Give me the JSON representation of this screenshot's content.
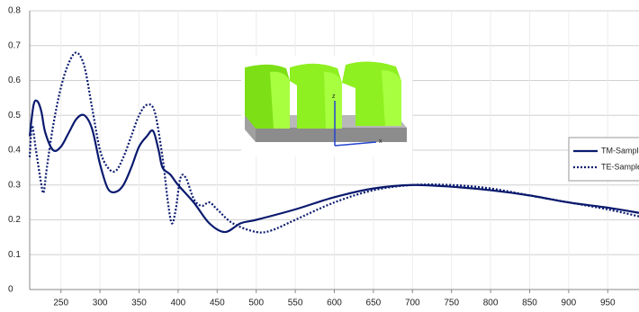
{
  "chart_data": {
    "type": "line",
    "xlim": [
      210,
      990
    ],
    "ylim": [
      0,
      0.8
    ],
    "xticks": [
      250,
      300,
      350,
      400,
      450,
      500,
      550,
      600,
      650,
      700,
      750,
      800,
      850,
      900,
      950
    ],
    "yticks": [
      0,
      0.1,
      0.2,
      0.3,
      0.4,
      0.5,
      0.6,
      0.7,
      0.8
    ],
    "grid": true,
    "legend": "right",
    "inset_labels": [
      "z",
      "x"
    ],
    "series": [
      {
        "name": "TM-Sample",
        "color": "#0a1a6e",
        "dash": "solid",
        "x": [
          210,
          215,
          220,
          225,
          230,
          240,
          250,
          260,
          270,
          280,
          290,
          300,
          310,
          320,
          330,
          340,
          350,
          360,
          368,
          375,
          380,
          390,
          400,
          420,
          440,
          460,
          480,
          500,
          550,
          600,
          650,
          700,
          750,
          800,
          850,
          900,
          950,
          990
        ],
        "values": [
          0.44,
          0.53,
          0.54,
          0.51,
          0.45,
          0.4,
          0.41,
          0.45,
          0.49,
          0.5,
          0.46,
          0.36,
          0.29,
          0.28,
          0.3,
          0.35,
          0.41,
          0.44,
          0.455,
          0.4,
          0.35,
          0.33,
          0.3,
          0.25,
          0.19,
          0.165,
          0.19,
          0.2,
          0.23,
          0.265,
          0.29,
          0.3,
          0.295,
          0.285,
          0.27,
          0.25,
          0.235,
          0.22
        ]
      },
      {
        "name": "TE-Sample",
        "color": "#0a1a6e",
        "dash": "dotted",
        "x": [
          210,
          213,
          218,
          225,
          228,
          232,
          240,
          250,
          260,
          270,
          280,
          290,
          300,
          310,
          320,
          330,
          340,
          350,
          360,
          370,
          380,
          387,
          392,
          397,
          403,
          410,
          420,
          430,
          440,
          450,
          470,
          500,
          520,
          550,
          600,
          650,
          700,
          750,
          800,
          850,
          900,
          950,
          990
        ],
        "values": [
          0.38,
          0.47,
          0.4,
          0.3,
          0.28,
          0.35,
          0.47,
          0.58,
          0.65,
          0.68,
          0.64,
          0.52,
          0.4,
          0.35,
          0.34,
          0.38,
          0.44,
          0.5,
          0.53,
          0.51,
          0.38,
          0.25,
          0.19,
          0.23,
          0.32,
          0.32,
          0.26,
          0.24,
          0.25,
          0.23,
          0.19,
          0.165,
          0.17,
          0.2,
          0.25,
          0.285,
          0.3,
          0.3,
          0.29,
          0.27,
          0.25,
          0.23,
          0.21
        ]
      }
    ]
  }
}
